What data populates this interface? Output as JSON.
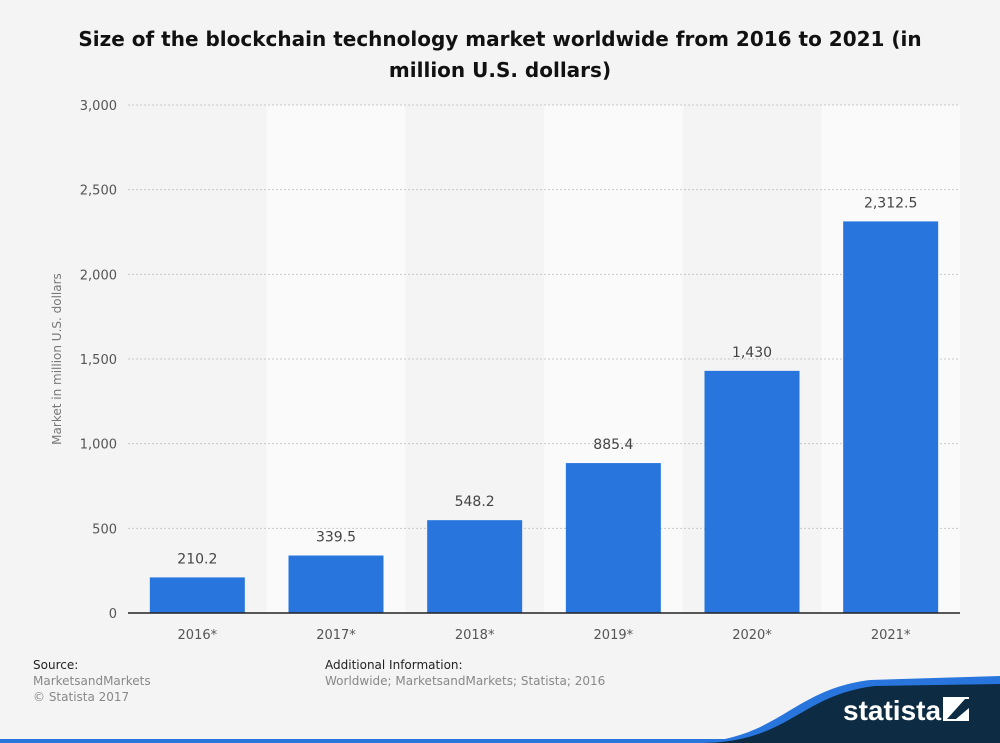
{
  "chart_data": {
    "type": "bar",
    "title": "Size of the blockchain technology market worldwide from 2016 to 2021 (in million U.S. dollars)",
    "xlabel": "",
    "ylabel": "Market in million U.S. dollars",
    "categories": [
      "2016*",
      "2017*",
      "2018*",
      "2019*",
      "2020*",
      "2021*"
    ],
    "values": [
      210.2,
      339.5,
      548.2,
      885.4,
      1430,
      2312.5
    ],
    "data_labels": [
      "210.2",
      "339.5",
      "548.2",
      "885.4",
      "1,430",
      "2,312.5"
    ],
    "ylim": [
      0,
      3000
    ],
    "yticks": [
      0,
      500,
      1000,
      1500,
      2000,
      2500,
      3000
    ],
    "ytick_labels": [
      "0",
      "500",
      "1,000",
      "1,500",
      "2,000",
      "2,500",
      "3,000"
    ],
    "grid": true,
    "legend": "none",
    "bar_color": "#2876dd"
  },
  "footer": {
    "source_label": "Source:",
    "source_lines": [
      "MarketsandMarkets",
      "© Statista 2017"
    ],
    "additional_label": "Additional Information:",
    "additional_text": "Worldwide; MarketsandMarkets; Statista; 2016",
    "logo_text": "statista"
  }
}
